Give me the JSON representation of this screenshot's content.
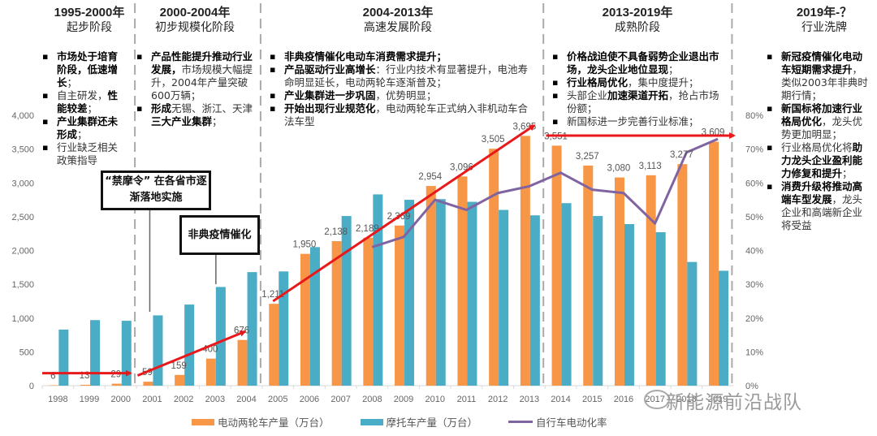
{
  "stages": [
    {
      "years": "1995-2000年",
      "name": "起步阶段",
      "bullets": [
        [
          {
            "t": "市场处于培育阶段，低速增长",
            "b": true
          },
          {
            "t": "；",
            "b": false
          }
        ],
        [
          {
            "t": "自主研发，",
            "b": false
          },
          {
            "t": "性能较差",
            "b": true
          },
          {
            "t": "；",
            "b": false
          }
        ],
        [
          {
            "t": "产业集群还未形成",
            "b": true
          },
          {
            "t": "；",
            "b": false
          }
        ],
        [
          {
            "t": "行业缺乏相关政策指导",
            "b": false
          }
        ]
      ]
    },
    {
      "years": "2000-2004年",
      "name": "初步规模化阶段",
      "bullets": [
        [
          {
            "t": "产品性能提升推动行业发展，",
            "b": true
          },
          {
            "t": "市场规模大幅提升，2004年产量突破600万辆；",
            "b": false
          }
        ],
        [
          {
            "t": "形成",
            "b": true
          },
          {
            "t": "无锡、浙江、天津",
            "b": false
          },
          {
            "t": "三大产业集群",
            "b": true
          },
          {
            "t": "；",
            "b": false
          }
        ]
      ]
    },
    {
      "years": "2004-2013年",
      "name": "高速发展阶段",
      "bullets": [
        [
          {
            "t": "非典疫情催化电动车消费需求提升；",
            "b": true
          }
        ],
        [
          {
            "t": "产品驱动行业高增长",
            "b": true
          },
          {
            "t": "：行业内技术有显著提升，电池寿命明显延长，电动两轮车逐渐普及；",
            "b": false
          }
        ],
        [
          {
            "t": "产业集群进一步巩固",
            "b": true
          },
          {
            "t": "，优势明显；",
            "b": false
          }
        ],
        [
          {
            "t": "开始出现行业规范化",
            "b": true
          },
          {
            "t": "，电动两轮车正式纳入非机动车合法车型",
            "b": false
          }
        ]
      ]
    },
    {
      "years": "2013-2019年",
      "name": "成熟阶段",
      "bullets": [
        [
          {
            "t": "价格战迫使不具备弱势企业退出市场，龙头企业地位显现",
            "b": true
          },
          {
            "t": "；",
            "b": false
          }
        ],
        [
          {
            "t": "行业格局优化",
            "b": true
          },
          {
            "t": "，集中度提升；",
            "b": false
          }
        ],
        [
          {
            "t": "头部企业",
            "b": false
          },
          {
            "t": "加速渠道开拓",
            "b": true
          },
          {
            "t": "，抢占市场份额；",
            "b": false
          }
        ],
        [
          {
            "t": "新国标进一步完善行业标准；",
            "b": false
          }
        ]
      ]
    },
    {
      "years": "2019年-？",
      "name": "行业洗牌",
      "bullets": [
        [
          {
            "t": "新冠疫情催化电动车短期需求提升",
            "b": true
          },
          {
            "t": "，类似2003年非典时期行情；",
            "b": false
          }
        ],
        [
          {
            "t": "新国标将加速行业格局优化",
            "b": true
          },
          {
            "t": "，龙头优势更加明显；",
            "b": false
          }
        ],
        [
          {
            "t": "行业格局优化将",
            "b": false
          },
          {
            "t": "助力龙头企业盈利能力修复和提升",
            "b": true
          },
          {
            "t": "；",
            "b": false
          }
        ],
        [
          {
            "t": "消费升级将推动高端车型发展",
            "b": true
          },
          {
            "t": "，龙头企业和高端新企业将受益",
            "b": false
          }
        ]
      ]
    }
  ],
  "callouts": {
    "ban": "“禁摩令” 在各省市逐渐落地实施",
    "sars": "非典疫情催化"
  },
  "watermark": "新能源前沿战队",
  "chart_data": {
    "type": "bar",
    "title": "",
    "categories": [
      "1998",
      "1999",
      "2000",
      "2001",
      "2002",
      "2003",
      "2004",
      "2005",
      "2006",
      "2007",
      "2008",
      "2009",
      "2010",
      "2011",
      "2012",
      "2013",
      "2014",
      "2015",
      "2016",
      "2017",
      "2018",
      "2019"
    ],
    "series": [
      {
        "name": "电动两轮车产量（万台）",
        "type": "bar",
        "axis": "left",
        "color": "#F79646",
        "values": [
          6,
          13,
          29,
          59,
          159,
          400,
          676,
          1211,
          1950,
          2138,
          2189,
          2369,
          2954,
          3096,
          3505,
          3695,
          3551,
          3257,
          3080,
          3113,
          3277,
          3609
        ],
        "labels_shown": true
      },
      {
        "name": "摩托车产量（万台）",
        "type": "bar",
        "axis": "left",
        "color": "#4BACC6",
        "values": [
          830,
          970,
          960,
          1040,
          1200,
          1460,
          1680,
          1690,
          2050,
          2510,
          2830,
          2750,
          2760,
          2720,
          2600,
          2520,
          2700,
          2510,
          2390,
          2270,
          1830,
          1700
        ]
      },
      {
        "name": "自行车电动化率",
        "type": "line",
        "axis": "right",
        "color": "#8064A2",
        "values": [
          null,
          null,
          null,
          null,
          null,
          null,
          null,
          null,
          null,
          null,
          0.41,
          0.44,
          0.55,
          0.52,
          0.57,
          0.59,
          0.63,
          0.58,
          0.57,
          0.48,
          0.69,
          0.73
        ]
      }
    ],
    "y_left": {
      "min": 0,
      "max": 4000,
      "ticks": [
        "0",
        "500",
        "1,000",
        "1,500",
        "2,000",
        "2,500",
        "3,000",
        "3,500",
        "4,000"
      ]
    },
    "y_right": {
      "min": 0,
      "max": 0.8,
      "ticks": [
        "0%",
        "10%",
        "20%",
        "30%",
        "40%",
        "50%",
        "60%",
        "70%",
        "80%"
      ]
    },
    "xlabel": "",
    "ylabel": "",
    "grid": false,
    "legend": "bottom",
    "trend_arrows": [
      {
        "from": [
          "1998",
          100
        ],
        "to": [
          "2000",
          100
        ]
      },
      {
        "from": [
          "2001",
          150
        ],
        "to": [
          "2004",
          800
        ]
      },
      {
        "from": [
          "2005",
          1250
        ],
        "to": [
          "2013",
          3850
        ]
      },
      {
        "from": [
          "2014",
          3700
        ],
        "to": [
          "2019",
          3700
        ]
      }
    ],
    "stage_dividers_after": [
      "2000",
      "2004",
      "2013",
      "2019"
    ]
  }
}
